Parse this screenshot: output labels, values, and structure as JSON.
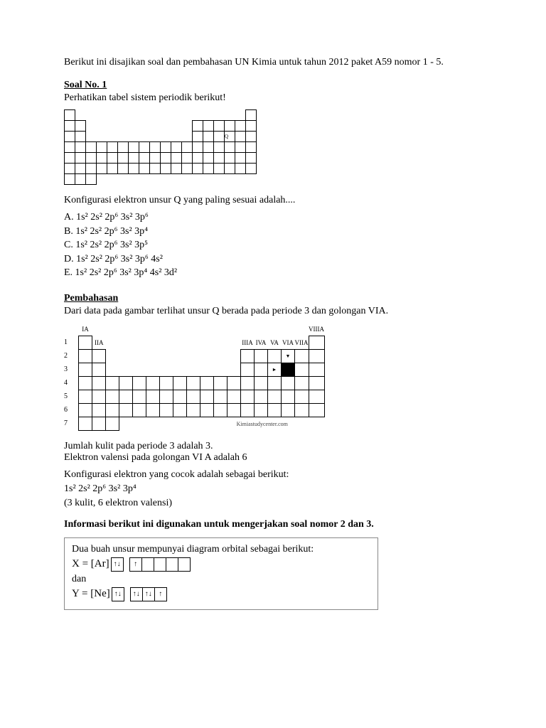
{
  "intro": "Berikut ini disajikan soal dan pembahasan UN Kimia untuk tahun 2012 paket A59 nomor 1 - 5.",
  "soal1": {
    "heading": "Soal No. 1",
    "prompt": "Perhatikan tabel sistem periodik berikut!",
    "question": "Konfigurasi elektron unsur Q yang paling sesuai adalah....",
    "options": {
      "A": "A. 1s² 2s² 2p⁶ 3s² 3p⁶",
      "B": "B. 1s² 2s² 2p⁶ 3s² 3p⁴",
      "C": "C. 1s² 2s² 2p⁶ 3s² 3p⁵",
      "D": "D. 1s² 2s² 2p⁶ 3s² 3p⁶ 4s²",
      "E": "E. 1s² 2s² 2p⁶ 3s² 3p⁴ 4s² 3d²"
    }
  },
  "pembahasan": {
    "heading": "Pembahasan",
    "line1": "Dari data pada gambar terlihat unsur Q berada pada periode 3 dan golongan VIA.",
    "line2": "Jumlah kulit pada periode 3 adalah 3.",
    "line3": "Elektron valensi pada golongan VI A adalah 6",
    "line4": "Konfigurasi elektron yang cocok adalah sebagai berikut:",
    "config": "1s² 2s² 2p⁶ 3s² 3p⁴",
    "line5": "(3 kulit, 6 elektron valensi)"
  },
  "info23": "Informasi berikut ini digunakan untuk mengerjakan soal nomor 2 dan 3.",
  "orbital": {
    "intro": "Dua buah unsur mempunyai diagram orbital sebagai berikut:",
    "x_prefix": "X = [Ar]",
    "dan": "dan",
    "y_prefix": "Y = [Ne]",
    "up": "↑",
    "down": "↓",
    "updown": "↑↓"
  },
  "pt_labels": {
    "groups": [
      "IA",
      "IIA",
      "IIIA",
      "IVA",
      "VA",
      "VIA",
      "VIIA",
      "VIIIA"
    ],
    "rows": [
      "1",
      "2",
      "3",
      "4",
      "5",
      "6",
      "7"
    ],
    "watermark": "Kimiastudycenter.com"
  },
  "colors": {
    "text": "#000000",
    "bg": "#ffffff",
    "border": "#000000",
    "boxborder": "#888888"
  }
}
